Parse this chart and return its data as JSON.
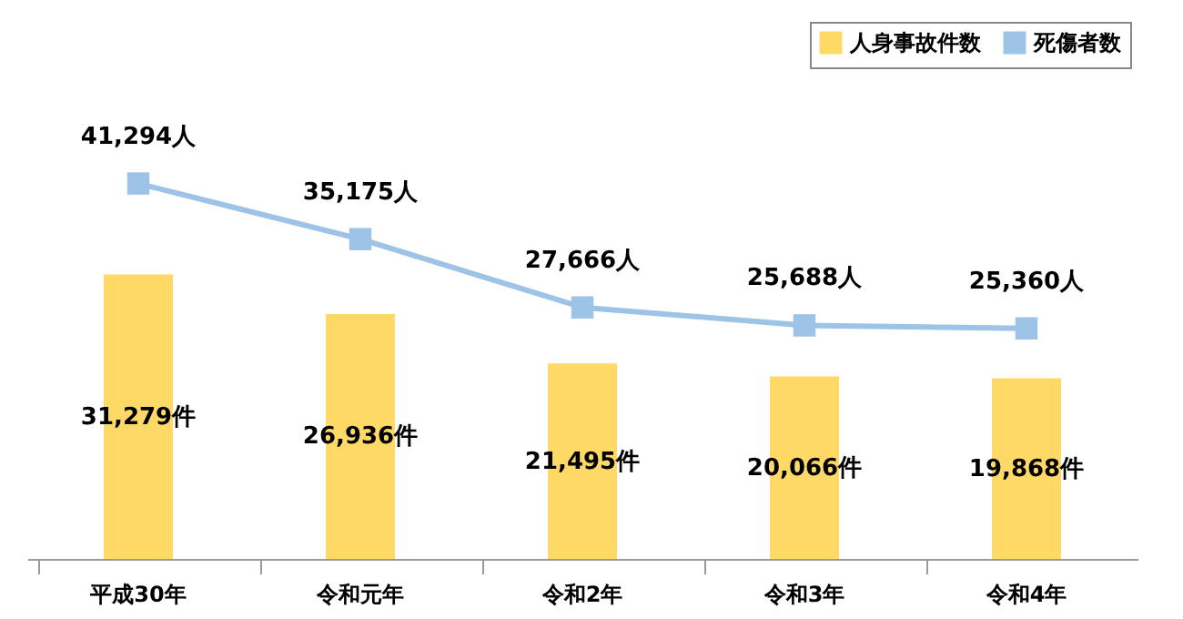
{
  "chart_data": {
    "type": "bar",
    "categories": [
      "平成30年",
      "令和元年",
      "令和2年",
      "令和3年",
      "令和4年"
    ],
    "series": [
      {
        "name": "人身事故件数",
        "color": "#ffd966",
        "values": [
          31279,
          26936,
          21495,
          20066,
          19868
        ],
        "value_labels": [
          "31,279件",
          "26,936件",
          "21,495件",
          "20,066件",
          "19,868件"
        ]
      },
      {
        "name": "死傷者数",
        "type": "line",
        "color": "#9dc3e6",
        "marker": "square",
        "values": [
          41294,
          35175,
          27666,
          25688,
          25360
        ],
        "value_labels": [
          "41,294人",
          "35,175人",
          "27,666人",
          "25,688人",
          "25,360人"
        ]
      }
    ],
    "legend": "top right"
  }
}
